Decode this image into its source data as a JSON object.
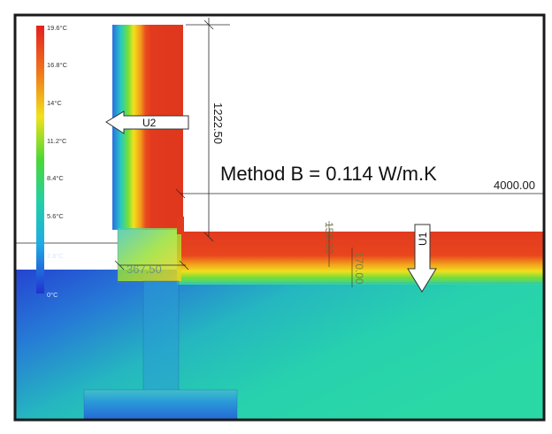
{
  "legend": {
    "ticks": [
      "19.6°C",
      "16.8°C",
      "14°C",
      "11.2°C",
      "8.4°C",
      "5.6°C",
      "2.8°C",
      "0°C"
    ]
  },
  "annotations": {
    "method": "Method B = 0.114 W/m.K",
    "u1": "U1",
    "u2": "U2"
  },
  "dimensions": {
    "wall_height": "1222.50",
    "ground_length": "4000.00",
    "wall_width": "367.50",
    "slab_thickness_a": "150.00",
    "slab_thickness_b": "170.00"
  },
  "colors": {
    "hot": "#e23a1e",
    "warm": "#f6e21c",
    "mid": "#47d83a",
    "cool": "#27d3b2",
    "cold": "#2233cc",
    "frame": "#1a1a1a"
  }
}
